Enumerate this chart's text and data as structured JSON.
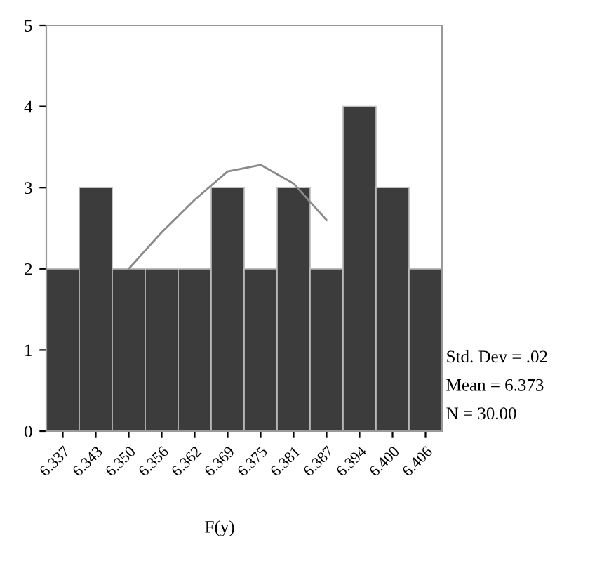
{
  "chart_data": {
    "type": "bar",
    "xlabel": "F(y)",
    "categories": [
      "6.337",
      "6.343",
      "6.350",
      "6.356",
      "6.362",
      "6.369",
      "6.375",
      "6.381",
      "6.387",
      "6.394",
      "6.400",
      "6.406"
    ],
    "series": [
      {
        "color": "#3c3c3c",
        "values": [
          2,
          3,
          2,
          2,
          2,
          3,
          2,
          3,
          2,
          4,
          3,
          2
        ]
      },
      {
        "type": "line",
        "color": "#8a8a8a",
        "x": [
          "6.350",
          "6.356",
          "6.362",
          "6.369",
          "6.375",
          "6.381",
          "6.387"
        ],
        "values": [
          2.0,
          2.45,
          2.85,
          3.2,
          3.28,
          3.05,
          2.6
        ]
      }
    ],
    "ylim": [
      0,
      5
    ],
    "yticks": [
      0,
      1,
      2,
      3,
      4,
      5
    ],
    "grid": false,
    "legend": false,
    "annotations": [
      "Std. Dev = .02",
      "Mean = 6.373",
      "N = 30.00"
    ]
  }
}
